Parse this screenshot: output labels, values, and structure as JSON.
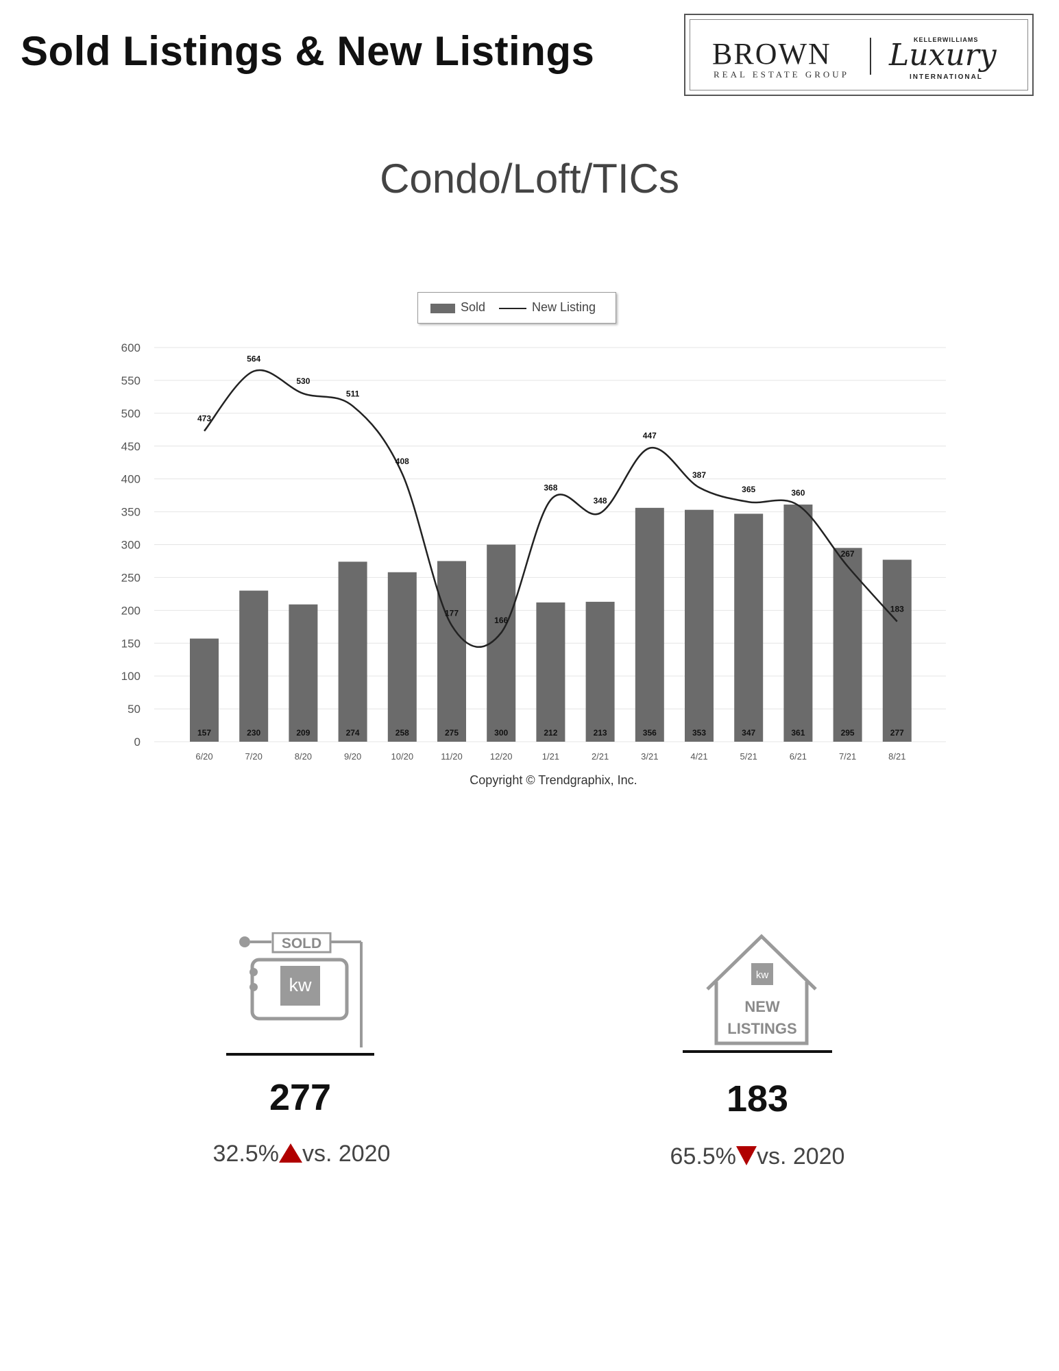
{
  "header": {
    "title": "Sold Listings & New Listings",
    "logo_brown": "BROWN",
    "logo_brown_sub": "REAL ESTATE GROUP",
    "logo_kw_top": "KELLERWILLIAMS",
    "logo_luxury": "Luxury",
    "logo_luxury_sub": "INTERNATIONAL"
  },
  "chart_title": "Condo/Loft/TICs",
  "copyright": "Copyright © Trendgraphix, Inc.",
  "chart_data": {
    "type": "bar",
    "categories": [
      "6/20",
      "7/20",
      "8/20",
      "9/20",
      "10/20",
      "11/20",
      "12/20",
      "1/21",
      "2/21",
      "3/21",
      "4/21",
      "5/21",
      "6/21",
      "7/21",
      "8/21"
    ],
    "series": [
      {
        "name": "Sold",
        "type": "bar",
        "values": [
          157,
          230,
          209,
          274,
          258,
          275,
          300,
          212,
          213,
          356,
          353,
          347,
          361,
          295,
          277
        ]
      },
      {
        "name": "New Listing",
        "type": "line",
        "values": [
          473,
          564,
          530,
          511,
          408,
          177,
          166,
          368,
          348,
          447,
          387,
          365,
          360,
          267,
          183
        ]
      }
    ],
    "yticks": [
      0,
      50,
      100,
      150,
      200,
      250,
      300,
      350,
      400,
      450,
      500,
      550,
      600
    ],
    "ylim": [
      0,
      600
    ],
    "grid": true,
    "legend": "top-center",
    "colors": {
      "bar": "#6b6b6b",
      "line": "#222222"
    }
  },
  "stats": {
    "sold": {
      "icon": "sold-sign-icon",
      "sign_text": "SOLD",
      "badge": "kw",
      "value": "277",
      "change": "32.5%",
      "direction": "up",
      "suffix": "vs. 2020"
    },
    "new": {
      "icon": "house-icon",
      "badge": "kw",
      "label_line1": "NEW",
      "label_line2": "LISTINGS",
      "value": "183",
      "change": "65.5%",
      "direction": "down",
      "suffix": "vs. 2020"
    }
  }
}
